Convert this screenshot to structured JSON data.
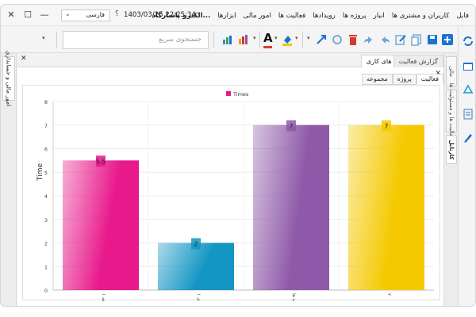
{
  "menubar": {
    "items": [
      "فایل",
      "کاربران و مشتری ها",
      "انبار",
      "پروژه ها",
      "رویدادها",
      "فعالیت ها",
      "امور مالی",
      "ابزارها",
      "الکترو پاسارگاد..."
    ],
    "datetime": "1403/03/25 22:25:34",
    "help": "؟",
    "language": "فارسی",
    "minimize": "—",
    "maximize": "☐",
    "close": "✕"
  },
  "toolbar": {
    "search_placeholder": "جستجوی سریع",
    "font_glyph": "A",
    "colors": {
      "blue": "#1a73d1",
      "red": "#d9372b",
      "orange": "#e89a2a",
      "green": "#3aa655"
    }
  },
  "left_strip": {
    "tab_label": "امور مالی و حسابداری"
  },
  "right_strip": {
    "tabs": [
      "مالی",
      "فعالیت ها و مسئولیت ها",
      "کارتابل"
    ]
  },
  "panel": {
    "tabs": [
      "برنامه های کاری",
      "گزارش فعالیت"
    ],
    "subtabs": [
      "فعالیت",
      "پروژه",
      "مجموعه"
    ],
    "close": "✕"
  },
  "chart_data": {
    "type": "bar",
    "categories": [
      "دسته مطالعه ۱",
      "برنامه های ۱",
      "پروژه ها",
      "۲"
    ],
    "values": [
      5.5,
      2,
      7,
      7
    ],
    "data_labels": [
      "5.5",
      "2",
      "7",
      "7"
    ],
    "series": [
      {
        "name": "Times",
        "values": [
          5.5,
          2,
          7,
          7
        ]
      }
    ],
    "colors": [
      "#e8198b",
      "#1496c4",
      "#8e59a8",
      "#f4c900"
    ],
    "legend_color": "#e8198b",
    "title": "",
    "xlabel": "",
    "ylabel": "Time",
    "ylim": [
      0,
      8
    ],
    "yticks": [
      "0",
      "1",
      "2",
      "3",
      "4",
      "5",
      "6",
      "7",
      "8"
    ],
    "grid": true,
    "legend_position": "top-center"
  }
}
